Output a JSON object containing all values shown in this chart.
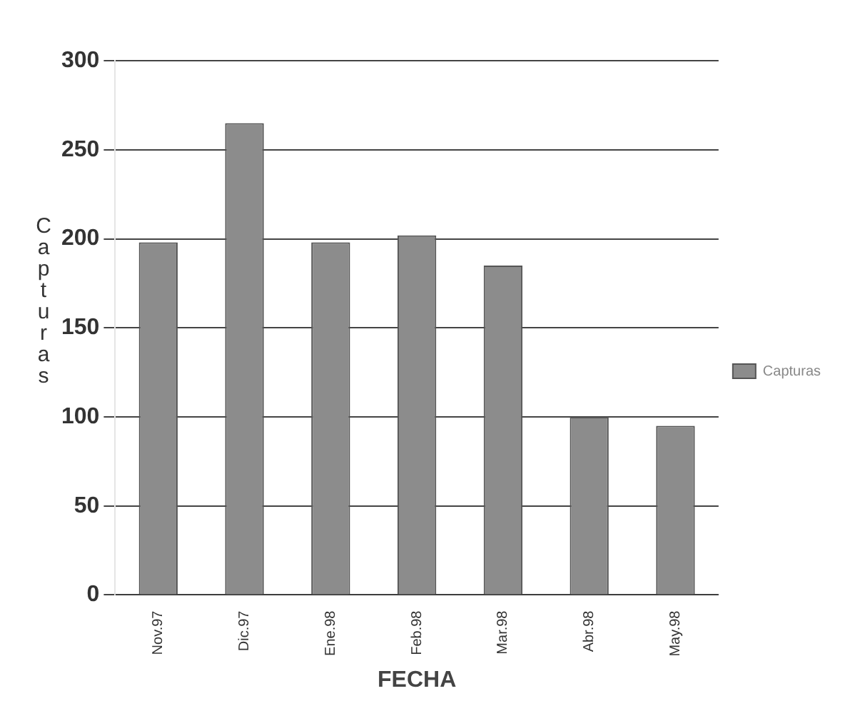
{
  "chart_data": {
    "type": "bar",
    "xlabel": "FECHA",
    "ylabel": "Capturas",
    "categories": [
      "Nov.97",
      "Dic.97",
      "Ene.98",
      "Feb.98",
      "Mar.98",
      "Abr.98",
      "May.98"
    ],
    "series": [
      {
        "name": "Capturas",
        "color": "#8c8c8c",
        "values": [
          198,
          265,
          198,
          202,
          185,
          100,
          95
        ]
      }
    ],
    "ylim": [
      0,
      300
    ],
    "yticks": [
      0,
      50,
      100,
      150,
      200,
      250,
      300
    ],
    "grid": "y",
    "legend": "right"
  }
}
